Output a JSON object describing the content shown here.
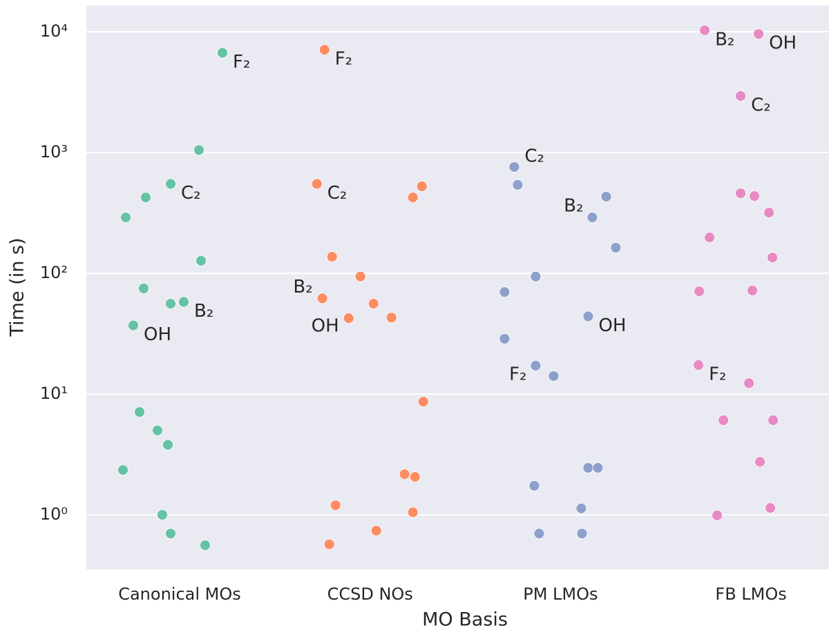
{
  "chart_data": {
    "type": "strip",
    "xlabel": "MO Basis",
    "ylabel": "Time (in s)",
    "categories": [
      "Canonical MOs",
      "CCSD NOs",
      "PM LMOs",
      "FB LMOs"
    ],
    "colors": [
      "#66c2a5",
      "#fc8d62",
      "#8da0cb",
      "#e78ac3"
    ],
    "values": [
      [
        6700,
        1050,
        550,
        425,
        290,
        127,
        75,
        58,
        56,
        37,
        7.1,
        5.0,
        3.8,
        2.35,
        1.0,
        0.7,
        0.56
      ],
      [
        7100,
        550,
        525,
        425,
        137,
        94,
        62,
        56,
        42.5,
        43,
        8.65,
        2.17,
        2.06,
        1.2,
        1.05,
        0.74,
        0.57
      ],
      [
        760,
        540,
        431,
        290,
        163,
        94,
        70,
        44,
        28.7,
        17.2,
        14.1,
        1.74,
        2.45,
        2.45,
        1.13,
        0.7,
        0.7
      ],
      [
        10300,
        9600,
        2940,
        460,
        436,
        318,
        198,
        135,
        71,
        72,
        17.4,
        12.3,
        6.07,
        6.07,
        2.75,
        0.99,
        1.14
      ]
    ],
    "point_labels": [
      [
        "F₂",
        null,
        "C₂",
        null,
        null,
        null,
        null,
        "B₂",
        null,
        "OH",
        null,
        null,
        null,
        null,
        null,
        null,
        null
      ],
      [
        "F₂",
        "C₂",
        null,
        null,
        null,
        null,
        "B₂",
        null,
        "OH",
        null,
        null,
        null,
        null,
        null,
        null,
        null,
        null
      ],
      [
        "C₂",
        null,
        null,
        "B₂",
        null,
        null,
        null,
        "OH",
        null,
        "F₂",
        null,
        null,
        null,
        null,
        null,
        null,
        null
      ],
      [
        "B₂",
        "OH",
        "C₂",
        null,
        null,
        null,
        null,
        null,
        null,
        null,
        "F₂",
        null,
        null,
        null,
        null,
        null,
        null
      ]
    ],
    "log_y": true,
    "ylim": [
      0.354,
      16500
    ],
    "yticks": [
      {
        "value": 1,
        "label": "10⁰"
      },
      {
        "value": 10,
        "label": "10¹"
      },
      {
        "value": 100,
        "label": "10²"
      },
      {
        "value": 1000,
        "label": "10³"
      },
      {
        "value": 10000,
        "label": "10⁴"
      }
    ],
    "grid": true
  }
}
